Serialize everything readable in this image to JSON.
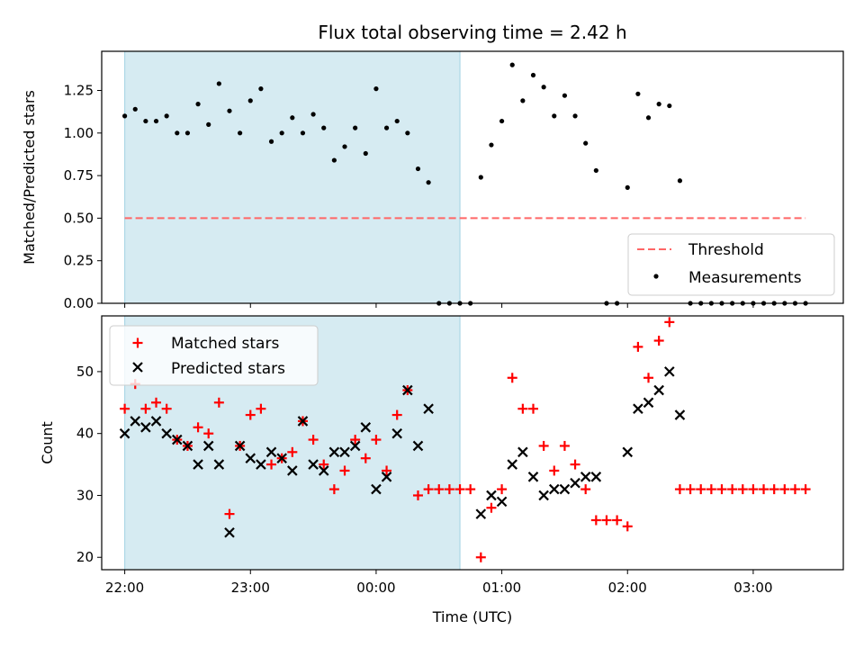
{
  "figure": {
    "title": "Flux total observing time = 2.42 h"
  },
  "chart_data": [
    {
      "type": "scatter",
      "panel": "top",
      "ylabel": "Matched/Predicted stars",
      "xlim": [
        "21:49",
        "03:43"
      ],
      "ylim": [
        0,
        1.48
      ],
      "yticks": [
        "0.00",
        "0.25",
        "0.50",
        "0.75",
        "1.00",
        "1.25"
      ],
      "shaded_region": {
        "from": "22:00",
        "to": "00:40",
        "color": "#add8e6"
      },
      "legend": {
        "position": "lower-right",
        "entries": [
          "Threshold",
          "Measurements"
        ]
      },
      "threshold": {
        "name": "Threshold",
        "value": 0.5,
        "from": "22:00",
        "to": "03:25",
        "color": "#ff6666"
      },
      "series": [
        {
          "name": "Measurements",
          "color": "#000000",
          "x": [
            "22:00",
            "22:05",
            "22:10",
            "22:15",
            "22:20",
            "22:25",
            "22:30",
            "22:35",
            "22:40",
            "22:45",
            "22:50",
            "22:55",
            "23:00",
            "23:05",
            "23:10",
            "23:15",
            "23:20",
            "23:25",
            "23:30",
            "23:35",
            "23:40",
            "23:45",
            "23:50",
            "23:55",
            "00:00",
            "00:05",
            "00:10",
            "00:15",
            "00:20",
            "00:25",
            "00:30",
            "00:35",
            "00:40",
            "00:45",
            "00:50",
            "00:55",
            "01:00",
            "01:05",
            "01:10",
            "01:15",
            "01:20",
            "01:25",
            "01:30",
            "01:35",
            "01:40",
            "01:45",
            "01:50",
            "01:55",
            "02:00",
            "02:05",
            "02:10",
            "02:15",
            "02:20",
            "02:25",
            "02:30",
            "02:35",
            "02:40",
            "02:45",
            "02:50",
            "02:55",
            "03:00",
            "03:05",
            "03:10",
            "03:15",
            "03:20",
            "03:25"
          ],
          "y": [
            1.1,
            1.14,
            1.07,
            1.07,
            1.1,
            1.0,
            1.0,
            1.17,
            1.05,
            1.29,
            1.13,
            1.0,
            1.19,
            1.26,
            0.95,
            1.0,
            1.09,
            1.0,
            1.11,
            1.03,
            0.84,
            0.92,
            1.03,
            0.88,
            1.26,
            1.03,
            1.07,
            1.0,
            0.79,
            0.71,
            0,
            0,
            0,
            0,
            0.74,
            0.93,
            1.07,
            1.4,
            1.19,
            1.34,
            1.27,
            1.1,
            1.22,
            1.1,
            0.94,
            0.78,
            0,
            0,
            0.68,
            1.23,
            1.09,
            1.17,
            1.16,
            0.72,
            0,
            0,
            0,
            0,
            0,
            0,
            0,
            0,
            0,
            0,
            0,
            0
          ]
        }
      ]
    },
    {
      "type": "scatter",
      "panel": "bottom",
      "xlabel": "Time (UTC)",
      "ylabel": "Count",
      "xlim": [
        "21:49",
        "03:43"
      ],
      "ylim": [
        18,
        59
      ],
      "xticks": [
        "22:00",
        "23:00",
        "00:00",
        "01:00",
        "02:00",
        "03:00"
      ],
      "yticks": [
        "20",
        "30",
        "40",
        "50"
      ],
      "shaded_region": {
        "from": "22:00",
        "to": "00:40",
        "color": "#add8e6"
      },
      "legend": {
        "position": "upper-left",
        "entries": [
          "Matched stars",
          "Predicted stars"
        ]
      },
      "series": [
        {
          "name": "Matched stars",
          "marker": "+",
          "color": "#ff0000",
          "x": [
            "22:00",
            "22:05",
            "22:10",
            "22:15",
            "22:20",
            "22:25",
            "22:30",
            "22:35",
            "22:40",
            "22:45",
            "22:50",
            "22:55",
            "23:00",
            "23:05",
            "23:10",
            "23:15",
            "23:20",
            "23:25",
            "23:30",
            "23:35",
            "23:40",
            "23:45",
            "23:50",
            "23:55",
            "00:00",
            "00:05",
            "00:10",
            "00:15",
            "00:20",
            "00:25",
            "00:30",
            "00:35",
            "00:40",
            "00:45",
            "00:50",
            "00:55",
            "01:00",
            "01:05",
            "01:10",
            "01:15",
            "01:20",
            "01:25",
            "01:30",
            "01:35",
            "01:40",
            "01:45",
            "01:50",
            "01:55",
            "02:00",
            "02:05",
            "02:10",
            "02:15",
            "02:20",
            "02:25",
            "02:30",
            "02:35",
            "02:40",
            "02:45",
            "02:50",
            "02:55",
            "03:00",
            "03:05",
            "03:10",
            "03:15",
            "03:20",
            "03:25"
          ],
          "y": [
            44,
            48,
            44,
            45,
            44,
            39,
            38,
            41,
            40,
            45,
            27,
            38,
            43,
            44,
            35,
            36,
            37,
            42,
            39,
            35,
            31,
            34,
            39,
            36,
            39,
            34,
            43,
            47,
            30,
            31,
            31,
            31,
            31,
            31,
            20,
            28,
            31,
            49,
            44,
            44,
            38,
            34,
            38,
            35,
            31,
            26,
            26,
            26,
            25,
            54,
            49,
            55,
            58,
            31,
            31,
            31,
            31,
            31,
            31,
            31,
            31,
            31,
            31,
            31,
            31,
            31
          ]
        },
        {
          "name": "Predicted stars",
          "marker": "x",
          "color": "#000000",
          "x": [
            "22:00",
            "22:05",
            "22:10",
            "22:15",
            "22:20",
            "22:25",
            "22:30",
            "22:35",
            "22:40",
            "22:45",
            "22:50",
            "22:55",
            "23:00",
            "23:05",
            "23:10",
            "23:15",
            "23:20",
            "23:25",
            "23:30",
            "23:35",
            "23:40",
            "23:45",
            "23:50",
            "23:55",
            "00:00",
            "00:05",
            "00:10",
            "00:15",
            "00:20",
            "00:25",
            "00:50",
            "00:55",
            "01:00",
            "01:05",
            "01:10",
            "01:15",
            "01:20",
            "01:25",
            "01:30",
            "01:35",
            "01:40",
            "01:45",
            "02:00",
            "02:05",
            "02:10",
            "02:15",
            "02:20",
            "02:25"
          ],
          "y": [
            40,
            42,
            41,
            42,
            40,
            39,
            38,
            35,
            38,
            35,
            24,
            38,
            36,
            35,
            37,
            36,
            34,
            42,
            35,
            34,
            37,
            37,
            38,
            41,
            31,
            33,
            40,
            47,
            38,
            44,
            27,
            30,
            29,
            35,
            37,
            33,
            30,
            31,
            31,
            32,
            33,
            33,
            37,
            44,
            45,
            47,
            50,
            43
          ]
        }
      ]
    }
  ]
}
